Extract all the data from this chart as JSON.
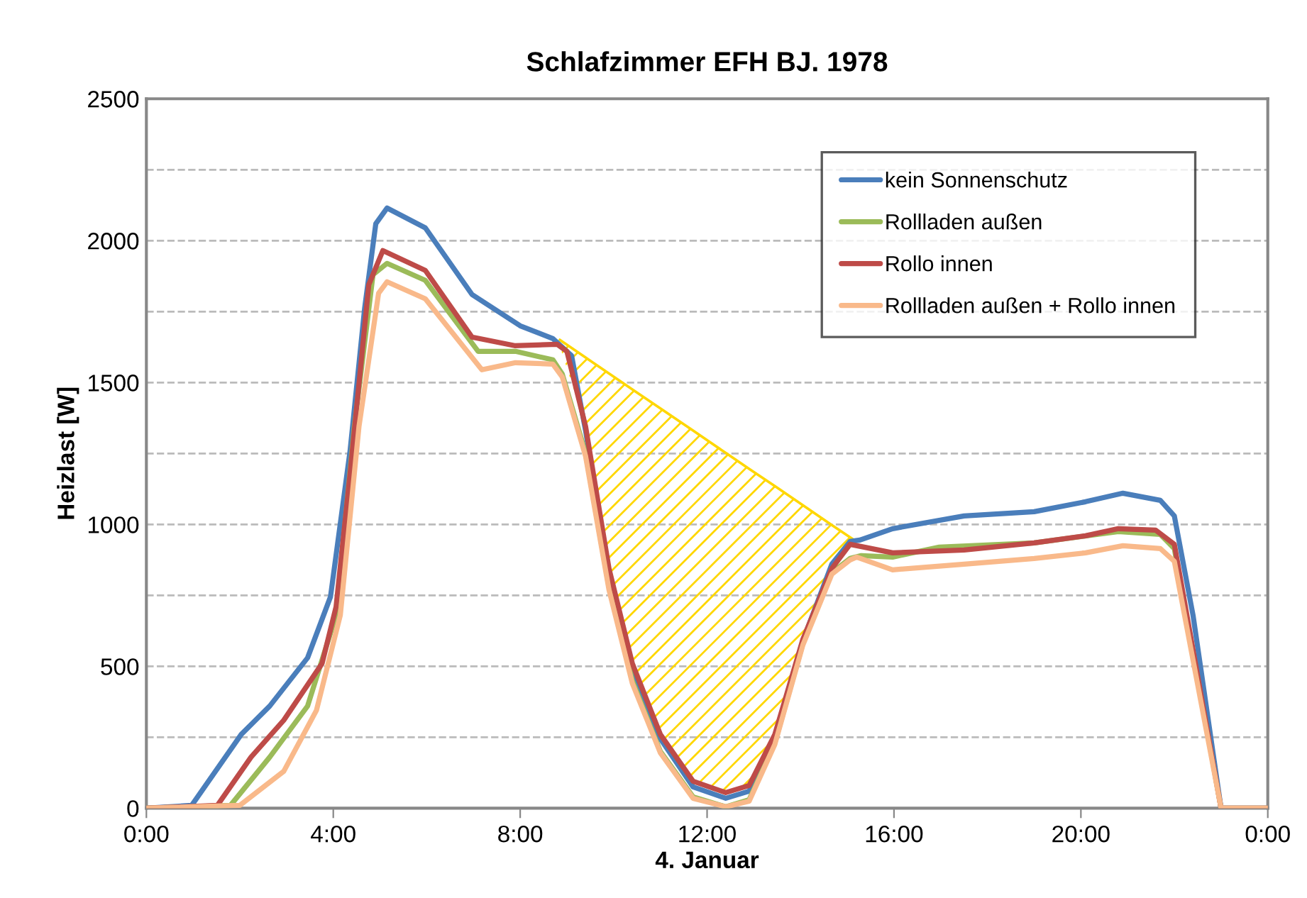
{
  "chart_data": {
    "type": "line",
    "title": "Schlafzimmer EFH BJ. 1978",
    "xlabel": "4. Januar",
    "ylabel": "Heizlast [W]",
    "xlim": [
      0,
      24
    ],
    "xticks": [
      {
        "value": 0,
        "label": "0:00"
      },
      {
        "value": 4,
        "label": "4:00"
      },
      {
        "value": 8,
        "label": "8:00"
      },
      {
        "value": 12,
        "label": "12:00"
      },
      {
        "value": 16,
        "label": "16:00"
      },
      {
        "value": 20,
        "label": "20:00"
      },
      {
        "value": 24,
        "label": "0:00"
      }
    ],
    "ylim": [
      0,
      2500
    ],
    "yticks": [
      0,
      {
        "value": 250,
        "label": null
      },
      500,
      {
        "value": 750,
        "label": null
      },
      1000,
      {
        "value": 1250,
        "label": null
      },
      1500,
      {
        "value": 1750,
        "label": null
      },
      2000,
      {
        "value": 2250,
        "label": null
      },
      2500
    ],
    "grid": "y",
    "legend": "top right",
    "line_style": "solid",
    "marker": "none",
    "series": [
      {
        "name": "kein Sonnenschutz",
        "color": "#4a7ebb",
        "x": [
          0,
          0.97,
          2.03,
          2.64,
          3.45,
          3.94,
          4.36,
          4.67,
          4.91,
          5.15,
          5.97,
          6.97,
          8.0,
          8.7,
          9.1,
          9.4,
          9.9,
          10.4,
          11.0,
          11.7,
          12.4,
          12.9,
          13.45,
          14.05,
          14.67,
          15.06,
          15.27,
          15.97,
          17.5,
          19.0,
          20.1,
          20.9,
          21.7,
          22.0,
          22.4,
          23.0,
          24
        ],
        "values": [
          0,
          10,
          260,
          360,
          530,
          745,
          1260,
          1760,
          2060,
          2115,
          2045,
          1810,
          1700,
          1655,
          1595,
          1330,
          830,
          490,
          245,
          75,
          35,
          60,
          245,
          590,
          860,
          940,
          945,
          985,
          1030,
          1045,
          1080,
          1110,
          1085,
          1030,
          680,
          0,
          0
        ]
      },
      {
        "name": "Rollladen außen",
        "color": "#9bbb59",
        "x": [
          0,
          1.8,
          2.64,
          3.45,
          4.06,
          4.45,
          4.85,
          5.15,
          5.97,
          7.1,
          7.9,
          8.7,
          8.9,
          9.4,
          9.9,
          10.4,
          11.0,
          11.7,
          12.4,
          12.9,
          13.45,
          14.05,
          14.67,
          15.06,
          15.3,
          15.97,
          16.97,
          19.0,
          20.8,
          21.7,
          22.0,
          23.0,
          24
        ],
        "values": [
          0,
          10,
          180,
          360,
          680,
          1345,
          1880,
          1920,
          1860,
          1610,
          1610,
          1580,
          1530,
          1250,
          780,
          450,
          200,
          40,
          5,
          30,
          230,
          580,
          830,
          880,
          890,
          885,
          920,
          935,
          975,
          965,
          915,
          0,
          0
        ]
      },
      {
        "name": "Rollo innen",
        "color": "#be4b48",
        "x": [
          0,
          1.52,
          2.24,
          2.94,
          3.76,
          4.06,
          4.36,
          4.76,
          5.06,
          5.97,
          6.97,
          7.88,
          8.79,
          9.0,
          9.4,
          9.9,
          10.4,
          11.0,
          11.7,
          12.4,
          12.9,
          13.45,
          14.05,
          14.67,
          15.06,
          15.97,
          17.5,
          19.0,
          20.1,
          20.8,
          21.6,
          22.0,
          23.0,
          24
        ],
        "values": [
          0,
          10,
          180,
          310,
          510,
          710,
          1180,
          1845,
          1965,
          1895,
          1660,
          1630,
          1635,
          1610,
          1345,
          845,
          510,
          260,
          95,
          55,
          80,
          260,
          595,
          845,
          930,
          900,
          910,
          935,
          960,
          985,
          980,
          930,
          0,
          0
        ]
      },
      {
        "name": "Rollladen außen + Rollo innen",
        "color": "#f9b98a",
        "x": [
          0,
          2.0,
          2.94,
          3.64,
          4.15,
          4.55,
          4.97,
          5.15,
          5.97,
          7.18,
          7.9,
          8.7,
          8.9,
          9.4,
          9.9,
          10.4,
          11.0,
          11.7,
          12.4,
          12.9,
          13.45,
          14.05,
          14.67,
          15.06,
          15.2,
          15.97,
          17.5,
          19.0,
          20.1,
          20.9,
          21.7,
          22.0,
          23.0,
          24
        ],
        "values": [
          0,
          10,
          130,
          345,
          680,
          1345,
          1815,
          1855,
          1795,
          1545,
          1570,
          1565,
          1520,
          1240,
          770,
          440,
          195,
          35,
          5,
          25,
          225,
          575,
          825,
          875,
          885,
          840,
          860,
          880,
          900,
          925,
          915,
          870,
          0,
          0
        ]
      },
      {
        "type": "area",
        "color": "#ffd700",
        "x": [
          8.85,
          9.4,
          9.9,
          10.4,
          11.0,
          11.7,
          12.4,
          12.9,
          13.45,
          14.05,
          14.67,
          15.1
        ],
        "values": [
          1650,
          1588,
          1532,
          1476,
          1409,
          1331,
          1252,
          1196,
          1135,
          1068,
          998,
          950
        ]
      }
    ]
  }
}
